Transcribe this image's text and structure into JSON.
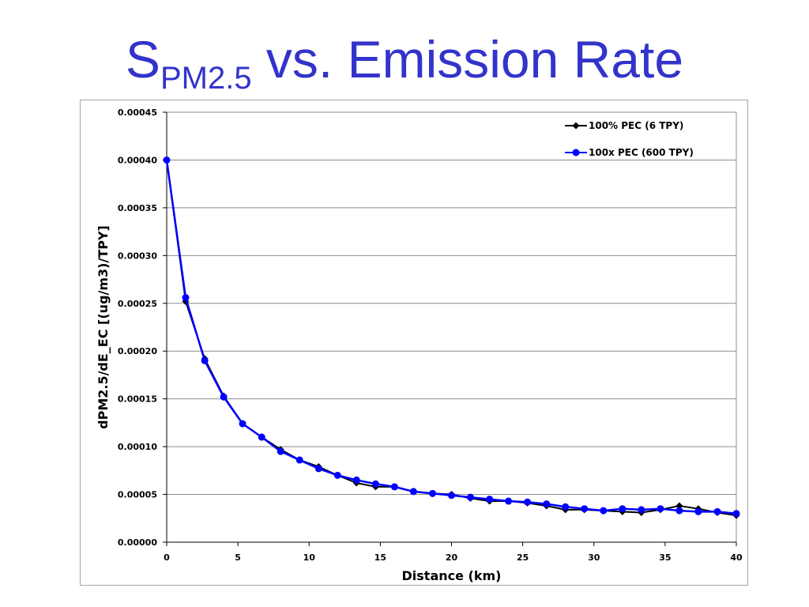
{
  "slide": {
    "title_main": "S",
    "title_sub": "PM2.5",
    "title_rest": " vs. Emission Rate"
  },
  "chart_data": {
    "type": "line",
    "xlabel": "Distance (km)",
    "ylabel": "dPM2.5/dE_EC [(ug/m3)/TPY]",
    "xlim": [
      0,
      40
    ],
    "ylim": [
      0,
      0.00045
    ],
    "x_ticks": [
      "0",
      "5",
      "10",
      "15",
      "20",
      "25",
      "30",
      "35",
      "40"
    ],
    "y_ticks": [
      "0.00000",
      "0.00005",
      "0.00010",
      "0.00015",
      "0.00020",
      "0.00025",
      "0.00030",
      "0.00035",
      "0.00040",
      "0.00045"
    ],
    "grid": "horizontal",
    "legend_position": "top-right",
    "x": [
      0,
      1.33,
      2.67,
      4.0,
      5.33,
      6.67,
      8.0,
      9.33,
      10.67,
      12.0,
      13.33,
      14.67,
      16.0,
      17.33,
      18.67,
      20.0,
      21.33,
      22.67,
      24.0,
      25.33,
      26.67,
      28.0,
      29.33,
      30.67,
      32.0,
      33.33,
      34.67,
      36.0,
      37.33,
      38.67,
      40.0
    ],
    "series": [
      {
        "name": "100% PEC (6 TPY)",
        "color": "#000000",
        "marker": "diamond",
        "values": [
          0.0004,
          0.000252,
          0.000192,
          0.000153,
          0.000124,
          0.00011,
          9.7e-05,
          8.6e-05,
          7.9e-05,
          7e-05,
          6.2e-05,
          5.8e-05,
          5.8e-05,
          5.3e-05,
          5.1e-05,
          5e-05,
          4.6e-05,
          4.3e-05,
          4.3e-05,
          4.1e-05,
          3.8e-05,
          3.4e-05,
          3.4e-05,
          3.3e-05,
          3.2e-05,
          3.1e-05,
          3.4e-05,
          3.8e-05,
          3.5e-05,
          3.1e-05,
          2.8e-05
        ]
      },
      {
        "name": "100x PEC (600 TPY)",
        "color": "#0000ff",
        "marker": "circle",
        "values": [
          0.0004,
          0.000256,
          0.00019,
          0.000152,
          0.000124,
          0.00011,
          9.5e-05,
          8.6e-05,
          7.7e-05,
          7e-05,
          6.5e-05,
          6.1e-05,
          5.8e-05,
          5.3e-05,
          5.1e-05,
          4.9e-05,
          4.7e-05,
          4.5e-05,
          4.3e-05,
          4.2e-05,
          4e-05,
          3.7e-05,
          3.5e-05,
          3.3e-05,
          3.5e-05,
          3.4e-05,
          3.5e-05,
          3.3e-05,
          3.2e-05,
          3.2e-05,
          3e-05
        ]
      }
    ]
  }
}
